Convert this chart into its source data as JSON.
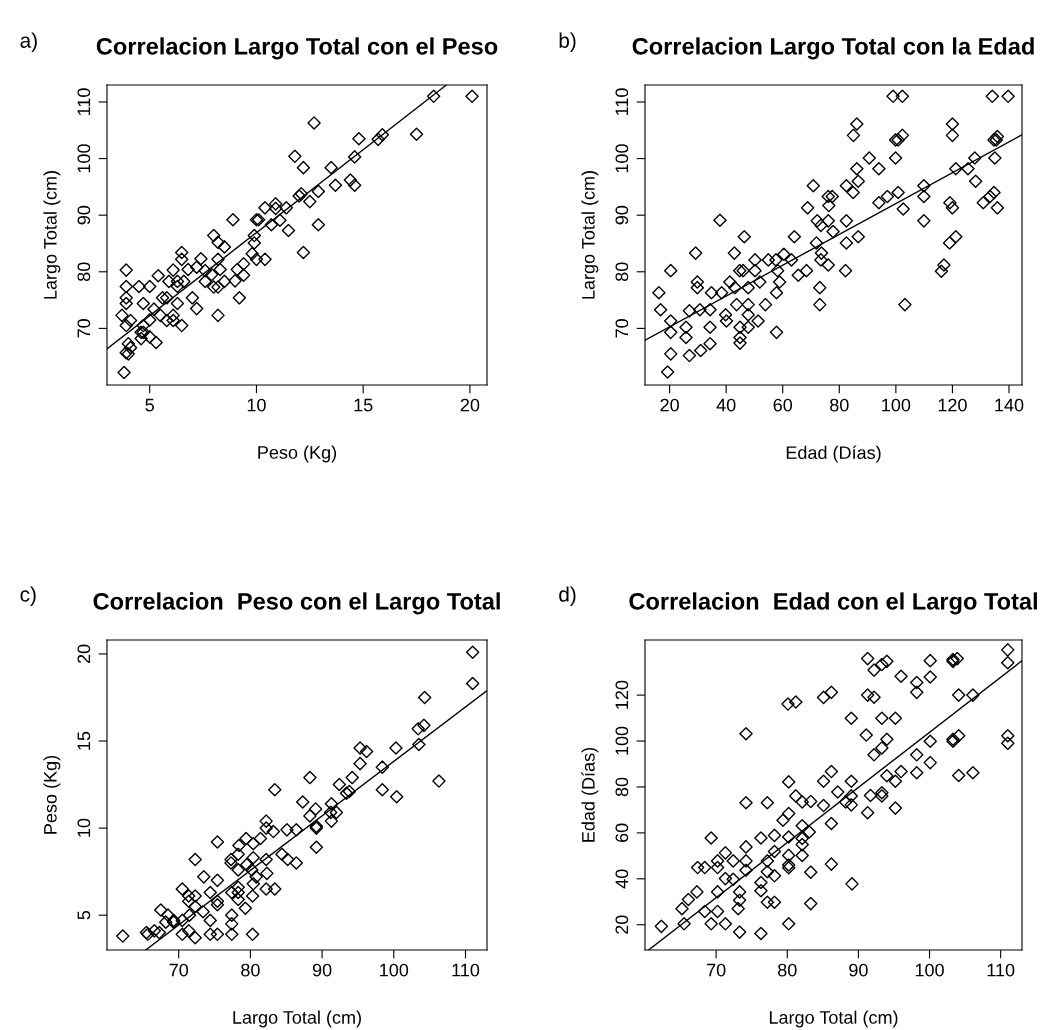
{
  "chart_data": [
    {
      "type": "scatter",
      "title": "Correlacion Largo Total con el Peso",
      "xlabel": "Peso (Kg)",
      "ylabel": "Largo Total (cm)",
      "annotations": [
        "a)"
      ],
      "marker": "diamond",
      "grid": false,
      "xlim": [
        3.0,
        20.8
      ],
      "ylim": [
        60.0,
        113.0
      ],
      "xticks": [
        5,
        10,
        15,
        20
      ],
      "yticks": [
        70,
        80,
        90,
        100,
        110
      ],
      "series": [
        {
          "color": "#000000",
          "x": [
            18.3,
            20.1,
            12.7,
            17.5,
            14.8,
            15.7,
            15.9,
            14.6,
            11.8,
            12.2,
            13.5,
            13.7,
            14.4,
            14.6,
            12.1,
            12.0,
            12.5,
            12.9,
            10.4,
            10.9,
            11.4,
            10.9,
            11.1,
            10.7,
            8.9,
            10.0,
            10.1,
            11.5,
            12.9,
            9.9,
            9.9,
            12.2,
            8.0,
            8.2,
            8.5,
            6.5,
            6.5,
            7.4,
            8.2,
            9.8,
            10.0,
            10.4,
            9.4,
            9.1,
            9.4,
            9.0,
            8.3,
            7.9,
            7.6,
            7.2,
            6.8,
            7.6,
            8.0,
            8.5,
            8.2,
            9.2,
            8.2,
            7.2,
            7.0,
            6.6,
            6.3,
            5.9,
            5.4,
            6.1,
            6.3,
            5.8,
            5.6,
            6.3,
            5.2,
            4.7,
            5.0,
            4.5,
            3.9,
            3.9,
            3.9,
            3.9,
            3.7,
            3.9,
            4.1,
            4.7,
            5.0,
            5.5,
            5.8,
            6.1,
            6.1,
            6.5,
            4.6,
            4.7,
            5.0,
            4.0,
            4.1,
            3.9,
            4.0,
            3.8,
            4.6,
            5.3
          ],
          "values": [
            111.0,
            111.0,
            106.3,
            104.3,
            103.5,
            103.4,
            104.2,
            100.3,
            100.4,
            98.4,
            98.4,
            95.3,
            96.2,
            95.3,
            93.8,
            93.4,
            92.4,
            94.2,
            91.3,
            92.0,
            91.3,
            91.2,
            89.1,
            88.3,
            89.2,
            89.2,
            89.2,
            87.3,
            88.3,
            86.4,
            85.1,
            83.4,
            86.4,
            85.2,
            84.4,
            83.4,
            82.2,
            82.3,
            82.2,
            83.2,
            82.2,
            82.2,
            81.4,
            80.4,
            79.4,
            78.4,
            80.4,
            79.5,
            80.2,
            80.8,
            80.4,
            78.3,
            77.3,
            78.3,
            77.3,
            75.4,
            72.3,
            73.5,
            75.4,
            78.3,
            78.3,
            78.3,
            79.3,
            80.3,
            77.4,
            75.4,
            75.4,
            74.4,
            73.4,
            74.4,
            77.4,
            77.4,
            77.4,
            75.4,
            74.4,
            80.3,
            72.3,
            70.5,
            71.4,
            70.5,
            71.5,
            72.3,
            71.4,
            72.3,
            71.4,
            70.5,
            69.3,
            69.3,
            68.5,
            67.3,
            66.6,
            65.7,
            65.5,
            62.2,
            68.2,
            67.5
          ]
        },
        {
          "type": "line",
          "color": "#000000",
          "marker": "none",
          "x": [
            3.0,
            18.9
          ],
          "values": [
            66.4,
            113.0
          ]
        }
      ]
    },
    {
      "type": "scatter",
      "title": "Correlacion Largo Total con la Edad",
      "xlabel": "Edad (Días)",
      "ylabel": "Largo Total (cm)",
      "annotations": [
        "b)"
      ],
      "marker": "diamond",
      "grid": false,
      "xlim": [
        11.3,
        144.6
      ],
      "ylim": [
        60.0,
        113.0
      ],
      "xticks": [
        20,
        40,
        60,
        80,
        100,
        120,
        140
      ],
      "yticks": [
        70,
        80,
        90,
        100,
        110
      ],
      "series": [
        {
          "color": "#000000",
          "x": [
            99.0,
            102.3,
            134.1,
            139.7,
            86.2,
            120.0,
            85.0,
            120.0,
            99.9,
            100.8,
            102.3,
            134.7,
            135.9,
            135.5,
            90.6,
            99.9,
            135.0,
            86.2,
            94.0,
            121.2,
            125.5,
            127.9,
            86.7,
            82.5,
            84.9,
            70.8,
            109.9,
            128.2,
            76.1,
            77.5,
            76.3,
            68.8,
            94.0,
            97.0,
            100.8,
            102.6,
            109.9,
            119.1,
            120.0,
            130.9,
            133.3,
            134.7,
            135.9,
            109.9,
            37.8,
            72.2,
            73.5,
            76.1,
            82.5,
            77.8,
            64.1,
            46.4,
            71.9,
            82.5,
            86.7,
            119.0,
            121.2,
            29.2,
            42.9,
            50.2,
            54.9,
            57.6,
            63.1,
            60.4,
            73.7,
            73.5,
            76.1,
            82.2,
            68.4,
            65.5,
            117.0,
            116.1,
            20.4,
            44.8,
            46.0,
            50.2,
            58.2,
            58.9,
            51.9,
            47.8,
            41.3,
            38.4,
            43.1,
            34.8,
            29.8,
            29.8,
            16.2,
            16.8,
            20.4,
            20.4,
            25.8,
            25.8,
            27.0,
            30.7,
            34.3,
            34.3,
            34.3,
            31.0,
            40.1,
            39.8,
            43.7,
            47.8,
            47.8,
            51.3,
            53.9,
            57.8,
            44.9,
            44.9,
            44.9,
            47.8,
            57.8,
            73.1,
            73.1,
            103.2,
            20.4,
            27.0,
            19.3
          ],
          "values": [
            111.0,
            111.0,
            111.0,
            111.0,
            106.1,
            106.1,
            104.1,
            104.1,
            103.3,
            103.3,
            104.1,
            103.3,
            103.9,
            103.3,
            100.1,
            100.1,
            100.1,
            98.2,
            98.2,
            98.2,
            98.2,
            100.1,
            96.0,
            95.2,
            94.0,
            95.2,
            95.2,
            96.0,
            93.3,
            93.3,
            91.7,
            91.3,
            92.2,
            93.3,
            94.0,
            91.1,
            93.3,
            92.2,
            91.3,
            92.2,
            93.3,
            94.0,
            91.3,
            89.0,
            89.1,
            89.0,
            88.2,
            89.0,
            89.0,
            87.1,
            86.2,
            86.2,
            85.1,
            85.1,
            86.2,
            85.1,
            86.2,
            83.3,
            83.3,
            82.1,
            82.1,
            82.1,
            82.1,
            83.1,
            83.3,
            82.1,
            81.2,
            80.2,
            80.2,
            79.4,
            81.2,
            80.1,
            80.2,
            80.2,
            80.2,
            80.2,
            80.2,
            78.2,
            78.2,
            77.2,
            78.2,
            76.3,
            77.2,
            76.3,
            78.2,
            77.2,
            76.3,
            73.3,
            71.3,
            69.3,
            70.2,
            68.4,
            73.1,
            73.3,
            73.3,
            70.2,
            67.3,
            66.1,
            71.3,
            72.4,
            74.2,
            74.2,
            72.4,
            71.3,
            74.2,
            76.3,
            70.2,
            68.4,
            67.4,
            70.2,
            69.3,
            77.2,
            74.2,
            74.2,
            65.5,
            65.2,
            62.3
          ]
        },
        {
          "type": "line",
          "color": "#000000",
          "marker": "none",
          "x": [
            11.3,
            144.6
          ],
          "values": [
            67.9,
            104.2
          ]
        }
      ]
    },
    {
      "type": "scatter",
      "title": "Correlacion  Peso con el Largo Total",
      "xlabel": "Largo Total (cm)",
      "ylabel": "Peso (Kg)",
      "annotations": [
        "c)"
      ],
      "marker": "diamond",
      "grid": false,
      "xlim": [
        60.0,
        113.0
      ],
      "ylim": [
        3.0,
        20.8
      ],
      "xticks": [
        70,
        80,
        90,
        100,
        110
      ],
      "yticks": [
        5,
        10,
        15,
        20
      ],
      "series": [
        {
          "color": "#000000",
          "x": [
            111.0,
            111.0,
            106.3,
            104.3,
            103.5,
            103.4,
            104.2,
            100.3,
            100.4,
            98.4,
            98.4,
            95.3,
            96.2,
            95.3,
            93.8,
            93.4,
            92.4,
            94.2,
            91.3,
            92.0,
            91.3,
            91.2,
            89.1,
            88.3,
            89.2,
            89.2,
            89.2,
            87.3,
            88.3,
            86.4,
            85.1,
            83.4,
            86.4,
            85.2,
            84.4,
            83.4,
            82.2,
            82.3,
            82.2,
            83.2,
            82.2,
            82.2,
            81.4,
            80.4,
            79.4,
            78.4,
            80.4,
            79.5,
            80.2,
            80.8,
            80.4,
            78.3,
            77.3,
            78.3,
            77.3,
            75.4,
            72.3,
            73.5,
            75.4,
            78.3,
            78.3,
            78.3,
            79.3,
            80.3,
            77.4,
            75.4,
            75.4,
            74.4,
            73.4,
            74.4,
            77.4,
            77.4,
            77.4,
            75.4,
            74.4,
            80.3,
            72.3,
            70.5,
            71.4,
            70.5,
            71.5,
            72.3,
            71.4,
            72.3,
            71.4,
            70.5,
            69.3,
            69.3,
            68.5,
            67.3,
            66.6,
            65.7,
            65.5,
            62.2,
            68.2,
            67.5
          ],
          "values": [
            18.3,
            20.1,
            12.7,
            17.5,
            14.8,
            15.7,
            15.9,
            14.6,
            11.8,
            12.2,
            13.5,
            13.7,
            14.4,
            14.6,
            12.1,
            12.0,
            12.5,
            12.9,
            10.4,
            10.9,
            11.4,
            10.9,
            11.1,
            10.7,
            8.9,
            10.0,
            10.1,
            11.5,
            12.9,
            9.9,
            9.9,
            12.2,
            8.0,
            8.2,
            8.5,
            6.5,
            6.5,
            7.4,
            8.2,
            9.8,
            10.0,
            10.4,
            9.4,
            9.1,
            9.4,
            9.0,
            8.3,
            7.9,
            7.6,
            7.2,
            6.8,
            7.6,
            8.0,
            8.5,
            8.2,
            9.2,
            8.2,
            7.2,
            7.0,
            6.6,
            6.3,
            5.9,
            5.4,
            6.1,
            6.3,
            5.8,
            5.6,
            6.3,
            5.2,
            4.7,
            5.0,
            4.5,
            3.9,
            3.9,
            3.9,
            3.9,
            3.7,
            3.9,
            4.1,
            4.7,
            5.0,
            5.5,
            5.8,
            6.1,
            6.1,
            6.5,
            4.6,
            4.7,
            5.0,
            4.0,
            4.1,
            3.9,
            4.0,
            3.8,
            4.6,
            5.3
          ]
        },
        {
          "type": "line",
          "color": "#000000",
          "marker": "none",
          "x": [
            65.4,
            113.0
          ],
          "values": [
            3.0,
            17.9
          ]
        }
      ]
    },
    {
      "type": "scatter",
      "title": "Correlacion  Edad con el Largo Total",
      "xlabel": "Largo Total (cm)",
      "ylabel": "Edad (Días)",
      "annotations": [
        "d)"
      ],
      "marker": "diamond",
      "grid": false,
      "xlim": [
        60.0,
        113.0
      ],
      "ylim": [
        9.0,
        144.0
      ],
      "xticks": [
        70,
        80,
        90,
        100,
        110
      ],
      "yticks": [
        20,
        40,
        60,
        80,
        100,
        120
      ],
      "series": [
        {
          "color": "#000000",
          "x": [
            111.0,
            111.0,
            111.0,
            111.0,
            106.1,
            106.1,
            104.1,
            104.1,
            103.3,
            103.3,
            104.1,
            103.3,
            103.9,
            103.3,
            100.1,
            100.1,
            100.1,
            98.2,
            98.2,
            98.2,
            98.2,
            100.1,
            96.0,
            95.2,
            94.0,
            95.2,
            95.2,
            96.0,
            93.3,
            93.3,
            91.7,
            91.3,
            92.2,
            93.3,
            94.0,
            91.1,
            93.3,
            92.2,
            91.3,
            92.2,
            93.3,
            94.0,
            91.3,
            89.0,
            89.1,
            89.0,
            88.2,
            89.0,
            89.0,
            87.1,
            86.2,
            86.2,
            85.1,
            85.1,
            86.2,
            85.1,
            86.2,
            83.3,
            83.3,
            82.1,
            82.1,
            82.1,
            82.1,
            83.1,
            83.3,
            82.1,
            81.2,
            80.2,
            80.2,
            79.4,
            81.2,
            80.1,
            80.2,
            80.2,
            80.2,
            80.2,
            80.2,
            78.2,
            78.2,
            77.2,
            78.2,
            76.3,
            77.2,
            76.3,
            78.2,
            77.2,
            76.3,
            73.3,
            71.3,
            69.3,
            70.2,
            68.4,
            73.1,
            73.3,
            73.3,
            70.2,
            67.3,
            66.1,
            71.3,
            72.4,
            74.2,
            74.2,
            72.4,
            71.3,
            74.2,
            76.3,
            70.2,
            68.4,
            67.4,
            70.2,
            69.3,
            77.2,
            74.2,
            74.2,
            65.5,
            65.2,
            62.3
          ],
          "values": [
            99.0,
            102.3,
            134.1,
            139.7,
            86.2,
            120.0,
            85.0,
            120.0,
            99.9,
            100.8,
            102.3,
            134.7,
            135.9,
            135.5,
            90.6,
            99.9,
            135.0,
            86.2,
            94.0,
            121.2,
            125.5,
            127.9,
            86.7,
            82.5,
            84.9,
            70.8,
            109.9,
            128.2,
            76.1,
            77.5,
            76.3,
            68.8,
            94.0,
            97.0,
            100.8,
            102.6,
            109.9,
            119.1,
            120.0,
            130.9,
            133.3,
            134.7,
            135.9,
            109.9,
            37.8,
            72.2,
            73.5,
            76.1,
            82.5,
            77.8,
            64.1,
            46.4,
            71.9,
            82.5,
            86.7,
            119.0,
            121.2,
            29.2,
            42.9,
            50.2,
            54.9,
            57.6,
            63.1,
            60.4,
            73.7,
            73.5,
            76.1,
            82.2,
            68.4,
            65.5,
            117.0,
            116.1,
            20.4,
            44.8,
            46.0,
            50.2,
            58.2,
            58.9,
            51.9,
            47.8,
            41.3,
            38.4,
            43.1,
            34.8,
            29.8,
            29.8,
            16.2,
            16.8,
            20.4,
            20.4,
            25.8,
            25.8,
            27.0,
            30.7,
            34.3,
            34.3,
            34.3,
            31.0,
            40.1,
            39.8,
            43.7,
            47.8,
            47.8,
            51.3,
            53.9,
            57.8,
            44.9,
            44.9,
            44.9,
            47.8,
            57.8,
            73.1,
            73.1,
            103.2,
            20.4,
            27.0,
            19.3
          ]
        },
        {
          "type": "line",
          "color": "#000000",
          "marker": "none",
          "x": [
            60.5,
            113.0
          ],
          "values": [
            9.0,
            135.0
          ]
        }
      ]
    }
  ]
}
